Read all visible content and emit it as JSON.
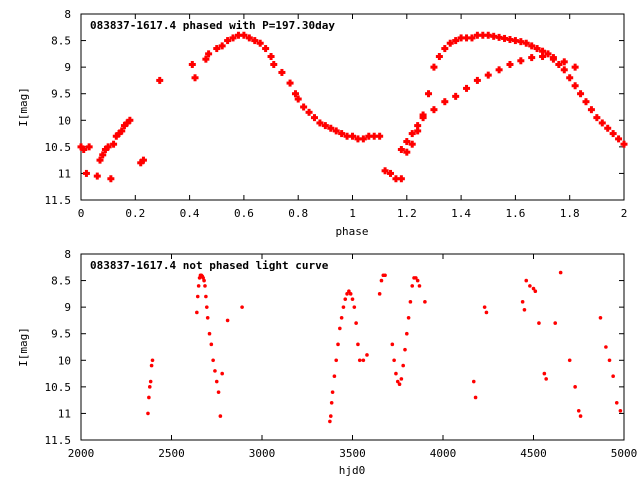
{
  "chart_data": [
    {
      "type": "scatter",
      "title": "083837-1617.4 phased with P=197.30day",
      "xlabel": "phase",
      "ylabel": "I[mag]",
      "xlim": [
        0,
        2
      ],
      "ylim": [
        11.5,
        8
      ],
      "y_inverted": true,
      "xticks": [
        0,
        0.2,
        0.4,
        0.6,
        0.8,
        1,
        1.2,
        1.4,
        1.6,
        1.8,
        2
      ],
      "xtick_labels": [
        "0",
        "0.2",
        "0.4",
        "0.6",
        "0.8",
        "1",
        "1.2",
        "1.4",
        "1.6",
        "1.8",
        "2"
      ],
      "yticks": [
        8,
        8.5,
        9,
        9.5,
        10,
        10.5,
        11,
        11.5
      ],
      "ytick_labels": [
        "8",
        "8.5",
        "9",
        "9.5",
        "10",
        "10.5",
        "11",
        "11.5"
      ],
      "grid": false,
      "marker_color": "#ff0000",
      "series": [
        {
          "x": [
            0.0,
            0.01,
            0.02,
            0.03,
            0.06,
            0.07,
            0.08,
            0.09,
            0.1,
            0.11,
            0.12,
            0.13,
            0.14,
            0.15,
            0.16,
            0.17,
            0.18,
            0.22,
            0.23,
            0.29,
            0.41,
            0.42,
            0.46,
            0.47,
            0.5,
            0.52,
            0.54,
            0.56,
            0.58,
            0.6,
            0.62,
            0.64,
            0.66,
            0.68,
            0.7,
            0.71,
            0.74,
            0.77,
            0.79,
            0.8,
            0.82,
            0.84,
            0.86,
            0.88,
            0.9,
            0.92,
            0.94,
            0.96,
            0.98,
            1.0,
            1.02,
            1.04,
            1.06,
            1.08,
            1.1,
            1.12,
            1.14,
            1.16,
            1.18,
            1.2,
            1.22,
            1.24,
            1.26,
            1.28,
            1.3,
            1.32,
            1.34,
            1.36,
            1.38,
            1.4,
            1.42,
            1.44,
            1.46,
            1.48,
            1.5,
            1.52,
            1.54,
            1.56,
            1.58,
            1.6,
            1.62,
            1.64,
            1.66,
            1.68,
            1.7,
            1.72,
            1.74,
            1.76,
            1.78,
            1.8,
            1.82,
            1.84,
            1.86,
            1.88,
            1.9,
            1.92,
            1.94,
            1.96,
            1.98,
            2.0
          ],
          "y": [
            10.5,
            10.55,
            11.0,
            10.5,
            11.05,
            10.75,
            10.65,
            10.55,
            10.5,
            11.1,
            10.45,
            10.3,
            10.25,
            10.2,
            10.1,
            10.05,
            10.0,
            10.8,
            10.75,
            9.25,
            8.95,
            9.2,
            8.85,
            8.75,
            8.65,
            8.6,
            8.5,
            8.45,
            8.4,
            8.4,
            8.45,
            8.5,
            8.55,
            8.65,
            8.8,
            8.95,
            9.1,
            9.3,
            9.5,
            9.6,
            9.75,
            9.85,
            9.95,
            10.05,
            10.1,
            10.15,
            10.2,
            10.25,
            10.3,
            10.3,
            10.35,
            10.35,
            10.3,
            10.3,
            10.3,
            10.95,
            11.0,
            11.1,
            11.1,
            10.6,
            10.45,
            10.2,
            9.9,
            9.5,
            9.0,
            8.8,
            8.65,
            8.55,
            8.5,
            8.45,
            8.45,
            8.45,
            8.4,
            8.4,
            8.4,
            8.42,
            8.44,
            8.46,
            8.48,
            8.5,
            8.52,
            8.55,
            8.6,
            8.65,
            8.7,
            8.75,
            8.85,
            8.95,
            9.05,
            9.2,
            9.35,
            9.5,
            9.65,
            9.8,
            9.95,
            10.05,
            10.15,
            10.25,
            10.35,
            10.45
          ]
        },
        {
          "x": [
            1.18,
            1.2,
            1.22,
            1.24,
            1.26,
            1.3,
            1.34,
            1.38,
            1.42,
            1.46,
            1.5,
            1.54,
            1.58,
            1.62,
            1.66,
            1.7,
            1.74,
            1.78,
            1.82
          ],
          "y": [
            10.55,
            10.4,
            10.25,
            10.1,
            9.95,
            9.8,
            9.65,
            9.55,
            9.4,
            9.25,
            9.15,
            9.05,
            8.95,
            8.88,
            8.82,
            8.8,
            8.82,
            8.9,
            9.0
          ]
        }
      ]
    },
    {
      "type": "scatter",
      "title": "083837-1617.4 not phased light curve",
      "xlabel": "hjd0",
      "ylabel": "I[mag]",
      "xlim": [
        2000,
        5000
      ],
      "ylim": [
        11.5,
        8
      ],
      "y_inverted": true,
      "xticks": [
        2000,
        2500,
        3000,
        3500,
        4000,
        4500,
        5000
      ],
      "xtick_labels": [
        "2000",
        "2500",
        "3000",
        "3500",
        "4000",
        "4500",
        "5000"
      ],
      "yticks": [
        8,
        8.5,
        9,
        9.5,
        10,
        10.5,
        11,
        11.5
      ],
      "ytick_labels": [
        "8",
        "8.5",
        "9",
        "9.5",
        "10",
        "10.5",
        "11",
        "11.5"
      ],
      "grid": false,
      "marker_color": "#ff0000",
      "series": [
        {
          "x": [
            2370,
            2375,
            2380,
            2385,
            2390,
            2395,
            2640,
            2645,
            2650,
            2655,
            2660,
            2665,
            2670,
            2675,
            2680,
            2685,
            2690,
            2695,
            2700,
            2710,
            2720,
            2730,
            2740,
            2750,
            2760,
            2770,
            2780,
            2810,
            2890,
            3375,
            3380,
            3385,
            3390,
            3400,
            3410,
            3420,
            3430,
            3440,
            3450,
            3460,
            3470,
            3480,
            3490,
            3500,
            3510,
            3520,
            3530,
            3540,
            3560,
            3580,
            3650,
            3660,
            3670,
            3680,
            3720,
            3730,
            3740,
            3750,
            3760,
            3770,
            3780,
            3790,
            3800,
            3810,
            3820,
            3830,
            3840,
            3850,
            3860,
            3870,
            3900,
            4170,
            4180,
            4230,
            4240,
            4440,
            4450,
            4460,
            4480,
            4500,
            4510,
            4530,
            4560,
            4570,
            4620,
            4650,
            4700,
            4730,
            4750,
            4760,
            4870,
            4900,
            4920,
            4940,
            4960,
            4980
          ],
          "y": [
            11.0,
            10.7,
            10.5,
            10.4,
            10.1,
            10.0,
            9.1,
            8.8,
            8.6,
            8.45,
            8.4,
            8.4,
            8.42,
            8.45,
            8.5,
            8.6,
            8.8,
            9.0,
            9.2,
            9.5,
            9.7,
            10.0,
            10.2,
            10.4,
            10.6,
            11.05,
            10.25,
            9.25,
            9.0,
            11.15,
            11.05,
            10.8,
            10.6,
            10.3,
            10.0,
            9.7,
            9.4,
            9.2,
            9.0,
            8.85,
            8.75,
            8.7,
            8.75,
            8.85,
            9.0,
            9.3,
            9.7,
            10.0,
            10.0,
            9.9,
            8.75,
            8.5,
            8.4,
            8.4,
            9.7,
            10.0,
            10.25,
            10.4,
            10.45,
            10.35,
            10.1,
            9.8,
            9.5,
            9.2,
            8.9,
            8.6,
            8.45,
            8.45,
            8.5,
            8.6,
            8.9,
            10.4,
            10.7,
            9.0,
            9.1,
            8.9,
            9.05,
            8.5,
            8.6,
            8.65,
            8.7,
            9.3,
            10.25,
            10.35,
            9.3,
            8.35,
            10.0,
            10.5,
            10.95,
            11.05,
            9.2,
            9.75,
            10.0,
            10.3,
            10.8,
            10.95
          ]
        }
      ]
    }
  ]
}
